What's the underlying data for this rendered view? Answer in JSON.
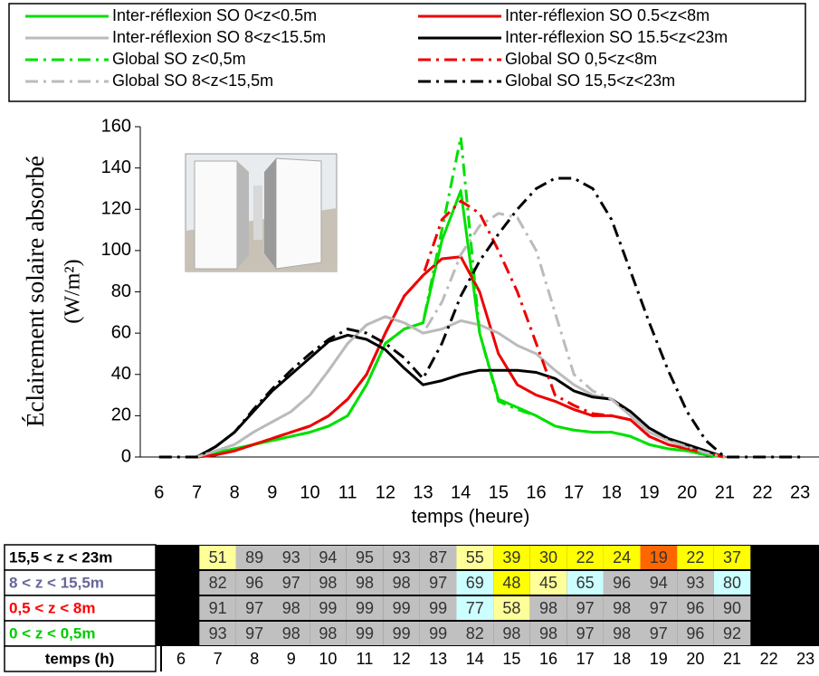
{
  "chart_data": {
    "type": "line",
    "y_label": [
      "Éclairement solaire absorbé",
      "(W/m²)"
    ],
    "x_label": "temps (heure)",
    "x": [
      6,
      6.5,
      7,
      7.5,
      8,
      8.5,
      9,
      9.5,
      10,
      10.5,
      11,
      11.5,
      12,
      12.5,
      13,
      13.5,
      14,
      14.5,
      15,
      15.5,
      16,
      16.5,
      17,
      17.5,
      18,
      18.5,
      19,
      19.5,
      20,
      20.5,
      21,
      21.5,
      22,
      22.5,
      23
    ],
    "xlim": [
      5.5,
      23.5
    ],
    "xticks": [
      6,
      7,
      8,
      9,
      10,
      11,
      12,
      13,
      14,
      15,
      16,
      17,
      18,
      19,
      20,
      21,
      22,
      23
    ],
    "ylim": [
      0,
      160
    ],
    "yticks": [
      0,
      20,
      40,
      60,
      80,
      100,
      120,
      140,
      160
    ],
    "series": [
      {
        "name": "Inter-réflexion SO 0<z<0.5m",
        "color": "#00e000",
        "style": "solid",
        "values": [
          null,
          null,
          0,
          2,
          4,
          6,
          8,
          10,
          12,
          15,
          20,
          35,
          55,
          62,
          65,
          105,
          129,
          60,
          28,
          24,
          20,
          15,
          13,
          12,
          12,
          10,
          6,
          4,
          3,
          1,
          0,
          null,
          null,
          null,
          null
        ]
      },
      {
        "name": "Inter-réflexion SO 0.5<z<8m",
        "color": "#ee0000",
        "style": "solid",
        "values": [
          null,
          null,
          0,
          1,
          3,
          6,
          9,
          12,
          15,
          20,
          28,
          40,
          60,
          78,
          88,
          96,
          97,
          80,
          50,
          35,
          30,
          27,
          23,
          20,
          20,
          18,
          10,
          6,
          4,
          2,
          0,
          null,
          null,
          null,
          null
        ]
      },
      {
        "name": "Inter-réflexion SO 8<z<15.5m",
        "color": "#bbbbbb",
        "style": "solid",
        "values": [
          null,
          null,
          0,
          3,
          6,
          12,
          17,
          22,
          30,
          42,
          55,
          64,
          68,
          65,
          60,
          62,
          66,
          64,
          60,
          54,
          50,
          42,
          35,
          30,
          28,
          20,
          12,
          8,
          5,
          2,
          0,
          null,
          null,
          null,
          null
        ]
      },
      {
        "name": "Inter-réflexion SO 15.5<z<23m",
        "color": "#000000",
        "style": "solid",
        "values": [
          null,
          null,
          0,
          5,
          12,
          22,
          32,
          40,
          48,
          56,
          59,
          57,
          52,
          43,
          35,
          37,
          40,
          42,
          42,
          42,
          41,
          38,
          32,
          29,
          28,
          22,
          14,
          9,
          6,
          3,
          0,
          null,
          null,
          null,
          null
        ]
      },
      {
        "name": "Global SO z<0,5m",
        "color": "#00e000",
        "style": "dashdot",
        "values": [
          null,
          null,
          0,
          2,
          4,
          6,
          8,
          10,
          12,
          15,
          20,
          35,
          55,
          62,
          65,
          110,
          155,
          60,
          27,
          23,
          20,
          15,
          13,
          12,
          12,
          10,
          6,
          4,
          3,
          1,
          0,
          null,
          null,
          null,
          null
        ]
      },
      {
        "name": "Global SO 0,5<z<8m",
        "color": "#ee0000",
        "style": "dashdot",
        "values": [
          null,
          null,
          0,
          1,
          3,
          6,
          9,
          12,
          15,
          20,
          28,
          40,
          60,
          78,
          88,
          115,
          124,
          118,
          100,
          80,
          55,
          30,
          25,
          21,
          20,
          18,
          10,
          6,
          4,
          2,
          0,
          null,
          null,
          null,
          null
        ]
      },
      {
        "name": "Global SO 8<z<15,5m",
        "color": "#bbbbbb",
        "style": "dashdot",
        "values": [
          null,
          null,
          0,
          3,
          6,
          12,
          17,
          22,
          30,
          42,
          55,
          64,
          68,
          65,
          60,
          75,
          98,
          112,
          118,
          116,
          100,
          70,
          40,
          32,
          28,
          20,
          12,
          8,
          5,
          2,
          0,
          null,
          null,
          null,
          null
        ]
      },
      {
        "name": "Global SO 15,5<z<23m",
        "color": "#000000",
        "style": "dashdot",
        "values": [
          0,
          0,
          0,
          5,
          12,
          23,
          33,
          42,
          50,
          57,
          62,
          60,
          55,
          48,
          38,
          55,
          78,
          95,
          108,
          120,
          130,
          135,
          135,
          130,
          115,
          90,
          65,
          42,
          22,
          8,
          0,
          0,
          0,
          0,
          0
        ]
      }
    ]
  },
  "table": {
    "times_label": "temps (h)",
    "times": [
      6,
      7,
      8,
      9,
      10,
      11,
      12,
      13,
      14,
      15,
      16,
      17,
      18,
      19,
      20,
      21,
      22,
      23
    ],
    "rows": [
      {
        "label": "15,5 < z < 23m",
        "label_color": "#000000",
        "values": [
          null,
          51,
          89,
          93,
          94,
          95,
          93,
          87,
          55,
          39,
          30,
          22,
          24,
          19,
          22,
          37,
          null,
          null
        ],
        "cell_colors": [
          null,
          "#ffff99",
          "#c0c0c0",
          "#c0c0c0",
          "#c0c0c0",
          "#c0c0c0",
          "#c0c0c0",
          "#c0c0c0",
          "#ffff99",
          "#ffff00",
          "#ffff00",
          "#ffff00",
          "#ffff00",
          "#ff6600",
          "#ffff00",
          "#ffff00",
          null,
          null
        ]
      },
      {
        "label": "8 < z < 15,5m",
        "label_color": "#666699",
        "values": [
          null,
          82,
          96,
          97,
          98,
          98,
          98,
          97,
          69,
          48,
          45,
          65,
          96,
          94,
          93,
          80,
          null,
          null
        ],
        "cell_colors": [
          null,
          "#c0c0c0",
          "#c0c0c0",
          "#c0c0c0",
          "#c0c0c0",
          "#c0c0c0",
          "#c0c0c0",
          "#c0c0c0",
          "#ccffff",
          "#ffff00",
          "#ffff99",
          "#ccffff",
          "#c0c0c0",
          "#c0c0c0",
          "#c0c0c0",
          "#ccffff",
          null,
          null
        ]
      },
      {
        "label": "0,5 < z < 8m",
        "label_color": "#ff0000",
        "values": [
          null,
          91,
          97,
          98,
          99,
          99,
          99,
          99,
          77,
          58,
          98,
          97,
          98,
          97,
          96,
          90,
          null,
          null
        ],
        "cell_colors": [
          null,
          "#c0c0c0",
          "#c0c0c0",
          "#c0c0c0",
          "#c0c0c0",
          "#c0c0c0",
          "#c0c0c0",
          "#c0c0c0",
          "#ccffff",
          "#ffff99",
          "#c0c0c0",
          "#c0c0c0",
          "#c0c0c0",
          "#c0c0c0",
          "#c0c0c0",
          "#c0c0c0",
          null,
          null
        ]
      },
      {
        "label": "0 < z < 0,5m",
        "label_color": "#00cc00",
        "values": [
          null,
          93,
          97,
          98,
          98,
          99,
          99,
          99,
          82,
          98,
          98,
          97,
          98,
          97,
          96,
          92,
          null,
          null
        ],
        "cell_colors": [
          null,
          "#c0c0c0",
          "#c0c0c0",
          "#c0c0c0",
          "#c0c0c0",
          "#c0c0c0",
          "#c0c0c0",
          "#c0c0c0",
          "#c0c0c0",
          "#c0c0c0",
          "#c0c0c0",
          "#c0c0c0",
          "#c0c0c0",
          "#c0c0c0",
          "#c0c0c0",
          "#c0c0c0",
          null,
          null
        ]
      }
    ]
  }
}
